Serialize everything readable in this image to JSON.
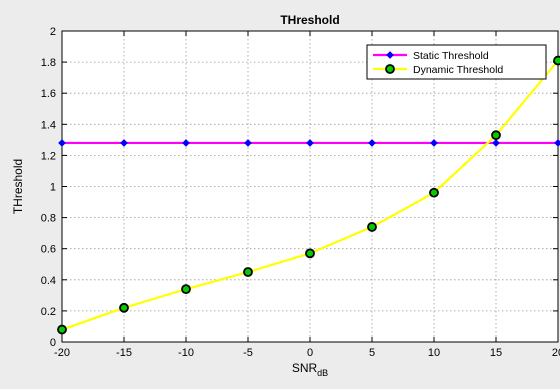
{
  "chart_data": {
    "type": "line",
    "title": "THreshold",
    "xlabel": "SNR",
    "xlabel_sub": "dB",
    "ylabel": "THreshold",
    "xlim": [
      -20,
      20
    ],
    "ylim": [
      0,
      2
    ],
    "x_ticks": [
      -20,
      -15,
      -10,
      -5,
      0,
      5,
      10,
      15,
      20
    ],
    "y_ticks": [
      0,
      0.2,
      0.4,
      0.6,
      0.8,
      1,
      1.2,
      1.4,
      1.6,
      1.8,
      2
    ],
    "x_tick_labels": [
      "-20",
      "-15",
      "-10",
      "-5",
      "0",
      "5",
      "10",
      "15",
      "20"
    ],
    "y_tick_labels": [
      "0",
      "0.2",
      "0.4",
      "0.6",
      "0.8",
      "1",
      "1.2",
      "1.4",
      "1.6",
      "1.8",
      "2"
    ],
    "grid": true,
    "legend_position": "top-right",
    "x": [
      -20,
      -15,
      -10,
      -5,
      0,
      5,
      10,
      15,
      20
    ],
    "series": [
      {
        "name": "Static Threshold",
        "color": "#ff00ff",
        "marker": "diamond",
        "marker_color": "#0000ff",
        "values": [
          1.28,
          1.28,
          1.28,
          1.28,
          1.28,
          1.28,
          1.28,
          1.28,
          1.28
        ]
      },
      {
        "name": "Dynamic Threshold",
        "color": "#ffff00",
        "marker": "circle",
        "marker_color": "#00cc00",
        "marker_edge": "#000000",
        "values": [
          0.08,
          0.22,
          0.34,
          0.45,
          0.57,
          0.74,
          0.96,
          1.33,
          1.81
        ]
      }
    ]
  }
}
